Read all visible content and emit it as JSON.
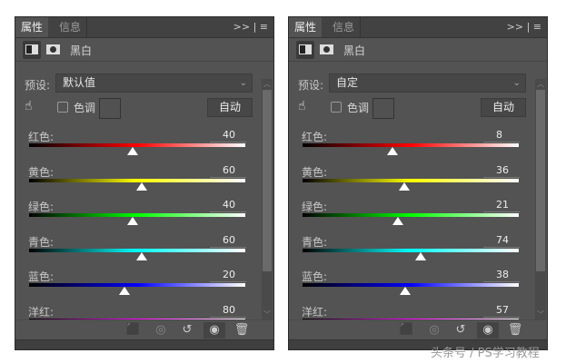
{
  "panels": [
    {
      "tabs": [
        "属性",
        "信息"
      ],
      "controls": ">> | ≡",
      "icon_label": "黑白",
      "preset_label": "预设:",
      "preset_value": "默认值",
      "tint_label": "色调",
      "auto_label": "自动",
      "sliders": [
        {
          "label": "红色:",
          "value": 40,
          "color": "#ff0000"
        },
        {
          "label": "黄色:",
          "value": 60,
          "color": "#ffff00"
        },
        {
          "label": "绿色:",
          "value": 40,
          "color": "#00ff00"
        },
        {
          "label": "青色:",
          "value": 60,
          "color": "#00ffff"
        },
        {
          "label": "蓝色:",
          "value": 20,
          "color": "#0000ff"
        },
        {
          "label": "洋红:",
          "value": 80,
          "color": "#ff00ff"
        }
      ]
    },
    {
      "tabs": [
        "属性",
        "信息"
      ],
      "controls": ">> | ≡",
      "icon_label": "黑白",
      "preset_label": "预设:",
      "preset_value": "自定",
      "tint_label": "色调",
      "auto_label": "自动",
      "sliders": [
        {
          "label": "红色:",
          "value": 8,
          "color": "#ff0000"
        },
        {
          "label": "黄色:",
          "value": 36,
          "color": "#ffff00"
        },
        {
          "label": "绿色:",
          "value": 21,
          "color": "#00ff00"
        },
        {
          "label": "青色:",
          "value": 74,
          "color": "#00ffff"
        },
        {
          "label": "蓝色:",
          "value": 38,
          "color": "#0000ff"
        },
        {
          "label": "洋红:",
          "value": 57,
          "color": "#ff00ff"
        }
      ]
    }
  ],
  "slider_range": [
    -200,
    300
  ],
  "tool_icons": [
    "clip-to-layer-icon",
    "view-previous-icon",
    "reset-icon",
    "visibility-eye-icon",
    "trash-icon"
  ],
  "watermark": "头条号 / PS学习教程"
}
